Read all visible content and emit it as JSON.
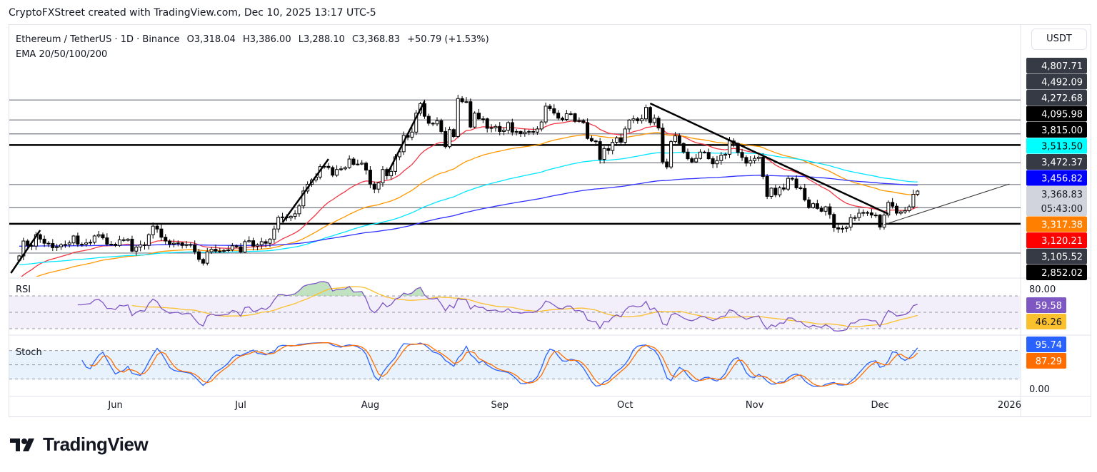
{
  "credit": "CryptoFXStreet created with TradingView.com, Dec 10, 2025 13:17 UTC-5",
  "legend": {
    "symbol": "Ethereum / TetherUS · 1D · Binance",
    "open": "O3,318.04",
    "high": "H3,386.00",
    "low": "L3,288.10",
    "close": "C3,368.83",
    "change": "+50.79 (+1.53%)",
    "indicator": "EMA 20/50/100/200"
  },
  "currency_button": "USDT",
  "logo_text": "TradingView",
  "price_labels": [
    {
      "text": "4,807.71",
      "bg": "#363a45",
      "fg": "#ffffff"
    },
    {
      "text": "4,492.09",
      "bg": "#363a45",
      "fg": "#ffffff"
    },
    {
      "text": "4,272.68",
      "bg": "#363a45",
      "fg": "#ffffff"
    },
    {
      "text": "4,095.98",
      "bg": "#000000",
      "fg": "#ffffff"
    },
    {
      "text": "3,815.00",
      "bg": "#000000",
      "fg": "#ffffff"
    },
    {
      "text": "3,513.50",
      "bg": "#00ffff",
      "fg": "#000000"
    },
    {
      "text": "3,472.37",
      "bg": "#363a45",
      "fg": "#ffffff"
    },
    {
      "text": "3,456.82",
      "bg": "#0000ff",
      "fg": "#ffffff"
    },
    {
      "text": "3,368.83",
      "bg": "#d1d4dc",
      "fg": "#131722",
      "sub": "05:43:00"
    },
    {
      "text": "3,317.38",
      "bg": "#ff8000",
      "fg": "#ffffff"
    },
    {
      "text": "3,120.21",
      "bg": "#ff0000",
      "fg": "#ffffff"
    },
    {
      "text": "3,105.52",
      "bg": "#363a45",
      "fg": "#ffffff"
    },
    {
      "text": "2,852.02",
      "bg": "#000000",
      "fg": "#ffffff"
    }
  ],
  "rsi_pane": {
    "title": "RSI",
    "tick": "80.00",
    "rsi": "59.58",
    "rsi_ma": "46.26",
    "rsi_color": "#7e57c2",
    "ma_color": "#fbc02d",
    "levels": [
      70,
      50,
      30
    ]
  },
  "stoch_pane": {
    "title": "Stoch",
    "tick": "0.00",
    "k": "95.74",
    "d": "87.29",
    "k_color": "#2962ff",
    "d_color": "#ff6d00",
    "levels": [
      80,
      50,
      20
    ]
  },
  "chart_data": {
    "type": "candlestick",
    "title": "Ethereum / TetherUS · 1D · Binance",
    "x_ticks": [
      {
        "label": "Jun",
        "date": "2025-06-01"
      },
      {
        "label": "Jul",
        "date": "2025-07-01"
      },
      {
        "label": "Aug",
        "date": "2025-08-01"
      },
      {
        "label": "Sep",
        "date": "2025-09-01"
      },
      {
        "label": "Oct",
        "date": "2025-10-01"
      },
      {
        "label": "Nov",
        "date": "2025-11-01"
      },
      {
        "label": "Dec",
        "date": "2025-12-01"
      },
      {
        "label": "2026",
        "date": "2026-01-01"
      }
    ],
    "last_candle": {
      "open": 3318.04,
      "high": 3386.0,
      "low": 3288.1,
      "close": 3368.83
    },
    "months": [
      {
        "month": "2025-05",
        "from_day": 9,
        "closes": [
          2345,
          2580,
          2510,
          2500,
          2680,
          2610,
          2545,
          2540,
          2475,
          2490,
          2520,
          2525,
          2550,
          2660,
          2530,
          2530,
          2550,
          2560,
          2660,
          2680,
          2630,
          2530,
          2530
        ]
      },
      {
        "month": "2025-06",
        "from_day": 1,
        "closes": [
          2510,
          2600,
          2590,
          2610,
          2420,
          2485,
          2520,
          2510,
          2680,
          2815,
          2770,
          2640,
          2580,
          2530,
          2545,
          2550,
          2510,
          2525,
          2520,
          2410,
          2290,
          2230,
          2410,
          2450,
          2420,
          2420,
          2430,
          2440,
          2505,
          2490
        ]
      },
      {
        "month": "2025-07",
        "from_day": 1,
        "closes": [
          2405,
          2570,
          2585,
          2500,
          2520,
          2570,
          2545,
          2610,
          2770,
          2955,
          2960,
          2945,
          2970,
          3010,
          3135,
          3370,
          3475,
          3545,
          3590,
          3755,
          3760,
          3740,
          3620,
          3710,
          3720,
          3740,
          3875,
          3790,
          3795,
          3810,
          3700
        ]
      },
      {
        "month": "2025-08",
        "from_day": 1,
        "closes": [
          3480,
          3400,
          3500,
          3710,
          3610,
          3680,
          3910,
          3990,
          4250,
          4220,
          4300,
          4600,
          4750,
          4550,
          4440,
          4430,
          4480,
          4310,
          4070,
          4340,
          4230,
          4830,
          4780,
          4780,
          4380,
          4600,
          4510,
          4510,
          4360,
          4370,
          4390
        ]
      },
      {
        "month": "2025-09",
        "from_day": 1,
        "closes": [
          4310,
          4330,
          4450,
          4300,
          4310,
          4275,
          4300,
          4310,
          4300,
          4350,
          4460,
          4710,
          4670,
          4600,
          4520,
          4500,
          4590,
          4590,
          4470,
          4480,
          4450,
          4200,
          4160,
          4150,
          3870,
          4040,
          4010,
          4140,
          4210,
          4140
        ]
      },
      {
        "month": "2025-10",
        "from_day": 1,
        "closes": [
          4350,
          4490,
          4510,
          4480,
          4510,
          4690,
          4450,
          4520,
          4365,
          3830,
          3750,
          4150,
          4240,
          4120,
          3985,
          3880,
          3830,
          3885,
          3985,
          3980,
          3880,
          3800,
          3850,
          3935,
          3950,
          4160,
          4120,
          3980,
          3900,
          3810,
          3850
        ]
      },
      {
        "month": "2025-11",
        "from_day": 1,
        "closes": [
          3885,
          3905,
          3600,
          3285,
          3415,
          3310,
          3420,
          3400,
          3570,
          3560,
          3420,
          3410,
          3230,
          3110,
          3170,
          3095,
          3050,
          3120,
          3000,
          2790,
          2770,
          2780,
          2800,
          2950,
          2950,
          3020,
          3030,
          3025,
          2990,
          2990
        ]
      },
      {
        "month": "2025-12",
        "from_day": 1,
        "closes": [
          2800,
          2990,
          3190,
          3130,
          3020,
          3040,
          3060,
          3120,
          3318.04,
          3368.83
        ]
      }
    ],
    "horizontal_levels": [
      {
        "price": 4807.71,
        "weight": "thin"
      },
      {
        "price": 4492.09,
        "weight": "thin"
      },
      {
        "price": 4272.68,
        "weight": "thin"
      },
      {
        "price": 4095.98,
        "weight": "thick"
      },
      {
        "price": 3815.0,
        "weight": "thin",
        "from": "2025-09-25"
      },
      {
        "price": 3472.37,
        "weight": "thin"
      },
      {
        "price": 3105.52,
        "weight": "thin"
      },
      {
        "price": 2852.02,
        "weight": "thick"
      },
      {
        "price": 2390,
        "weight": "thin"
      }
    ],
    "trendlines": [
      {
        "from": [
          "2025-05-07",
          2074
        ],
        "to": [
          "2025-05-14",
          2750
        ],
        "weight": "thick"
      },
      {
        "from": [
          "2025-07-11",
          2873
        ],
        "to": [
          "2025-07-22",
          3875
        ],
        "weight": "thick"
      },
      {
        "from": [
          "2025-08-05",
          3628
        ],
        "to": [
          "2025-08-14",
          4788
        ],
        "weight": "thick"
      },
      {
        "from": [
          "2025-10-07",
          4754
        ],
        "to": [
          "2025-12-03",
          3008
        ],
        "weight": "thick"
      },
      {
        "from": [
          "2025-12-02",
          2840
        ],
        "to": [
          "2026-01-01",
          3481
        ],
        "weight": "thin"
      }
    ],
    "ema": [
      {
        "period": 20,
        "color": "#f23645",
        "last": 3120.21
      },
      {
        "period": 50,
        "color": "#ff9800",
        "last": 3317.38
      },
      {
        "period": 100,
        "color": "#00e5ff",
        "last": 3513.5
      },
      {
        "period": 200,
        "color": "#3030ff",
        "last": 3456.82
      }
    ],
    "grid": false
  }
}
